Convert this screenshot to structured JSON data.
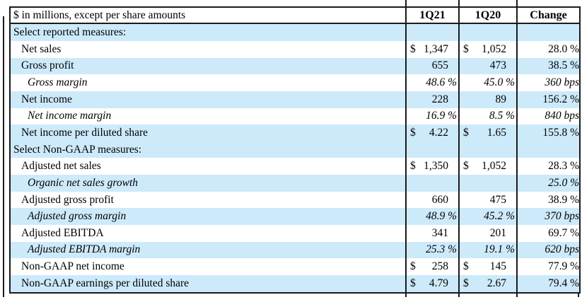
{
  "table": {
    "unit_note": "$ in millions, except per share amounts",
    "columns": {
      "col1": "1Q21",
      "col2": "1Q20",
      "col3": "Change"
    },
    "rows": [
      {
        "label": "Select reported measures:",
        "indent": 0,
        "shade": true,
        "italic": false,
        "d1": "",
        "v1": "",
        "p1": false,
        "d2": "",
        "v2": "",
        "p2": false,
        "change": ""
      },
      {
        "label": "Net sales",
        "indent": 1,
        "shade": false,
        "italic": false,
        "d1": "$",
        "v1": "1,347",
        "p1": false,
        "d2": "$",
        "v2": "1,052",
        "p2": false,
        "change": "28.0 %"
      },
      {
        "label": "Gross profit",
        "indent": 1,
        "shade": true,
        "italic": false,
        "d1": "",
        "v1": "655",
        "p1": false,
        "d2": "",
        "v2": "473",
        "p2": false,
        "change": "38.5 %"
      },
      {
        "label": "Gross margin",
        "indent": 2,
        "shade": false,
        "italic": true,
        "d1": "",
        "v1": "48.6 %",
        "p1": true,
        "d2": "",
        "v2": "45.0 %",
        "p2": true,
        "change": "360 bps"
      },
      {
        "label": "Net income",
        "indent": 1,
        "shade": true,
        "italic": false,
        "d1": "",
        "v1": "228",
        "p1": false,
        "d2": "",
        "v2": "89",
        "p2": false,
        "change": "156.2 %"
      },
      {
        "label": "Net income margin",
        "indent": 2,
        "shade": false,
        "italic": true,
        "d1": "",
        "v1": "16.9 %",
        "p1": true,
        "d2": "",
        "v2": "8.5 %",
        "p2": true,
        "change": "840 bps"
      },
      {
        "label": "Net income per diluted share",
        "indent": 1,
        "shade": true,
        "italic": false,
        "d1": "$",
        "v1": "4.22",
        "p1": false,
        "d2": "$",
        "v2": "1.65",
        "p2": false,
        "change": "155.8 %"
      },
      {
        "label": "",
        "indent": 0,
        "shade": false,
        "italic": false,
        "d1": "",
        "v1": "",
        "p1": false,
        "d2": "",
        "v2": "",
        "p2": false,
        "change": ""
      },
      {
        "label": "Select Non-GAAP measures:",
        "indent": 0,
        "shade": true,
        "italic": false,
        "d1": "",
        "v1": "",
        "p1": false,
        "d2": "",
        "v2": "",
        "p2": false,
        "change": ""
      },
      {
        "label": "Adjusted net sales",
        "indent": 1,
        "shade": false,
        "italic": false,
        "d1": "$",
        "v1": "1,350",
        "p1": false,
        "d2": "$",
        "v2": "1,052",
        "p2": false,
        "change": "28.3 %"
      },
      {
        "label": "Organic net sales growth",
        "indent": 2,
        "shade": true,
        "italic": true,
        "d1": "",
        "v1": "",
        "p1": false,
        "d2": "",
        "v2": "",
        "p2": false,
        "change": "25.0 %"
      },
      {
        "label": "Adjusted gross profit",
        "indent": 1,
        "shade": false,
        "italic": false,
        "d1": "",
        "v1": "660",
        "p1": false,
        "d2": "",
        "v2": "475",
        "p2": false,
        "change": "38.9 %"
      },
      {
        "label": "Adjusted gross margin",
        "indent": 2,
        "shade": true,
        "italic": true,
        "d1": "",
        "v1": "48.9 %",
        "p1": true,
        "d2": "",
        "v2": "45.2 %",
        "p2": true,
        "change": "370 bps"
      },
      {
        "label": "Adjusted EBITDA",
        "indent": 1,
        "shade": false,
        "italic": false,
        "d1": "",
        "v1": "341",
        "p1": false,
        "d2": "",
        "v2": "201",
        "p2": false,
        "change": "69.7 %"
      },
      {
        "label": "Adjusted EBITDA margin",
        "indent": 2,
        "shade": true,
        "italic": true,
        "d1": "",
        "v1": "25.3 %",
        "p1": true,
        "d2": "",
        "v2": "19.1 %",
        "p2": true,
        "change": "620 bps"
      },
      {
        "label": "Non-GAAP net income",
        "indent": 1,
        "shade": false,
        "italic": false,
        "d1": "$",
        "v1": "258",
        "p1": false,
        "d2": "$",
        "v2": "145",
        "p2": false,
        "change": "77.9 %"
      },
      {
        "label": "Non-GAAP earnings per diluted share",
        "indent": 1,
        "shade": true,
        "italic": false,
        "d1": "$",
        "v1": "4.79",
        "p1": false,
        "d2": "$",
        "v2": "2.67",
        "p2": false,
        "change": "79.4 %"
      }
    ]
  },
  "colors": {
    "row_shade": "#cdeafb",
    "border": "#1a1a1a",
    "text": "#000000"
  }
}
